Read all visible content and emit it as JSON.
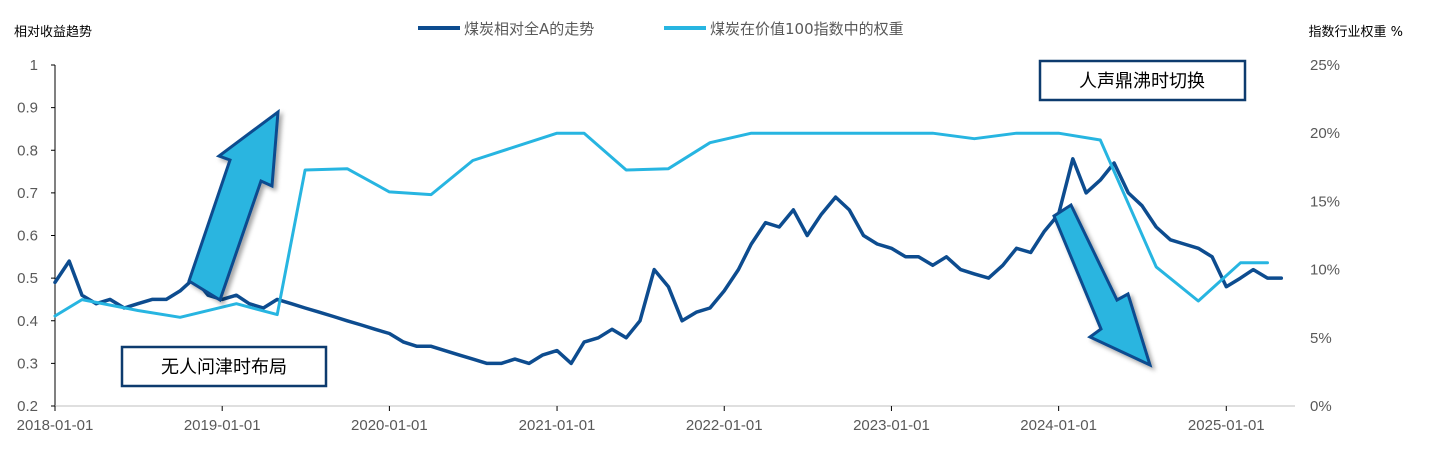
{
  "chart_data": {
    "type": "line",
    "title": "",
    "ylabel_left": "相对收益趋势",
    "ylabel_right": "指数行业权重 %",
    "x_ticks": [
      "2018-01-01",
      "2019-01-01",
      "2020-01-01",
      "2021-01-01",
      "2022-01-01",
      "2023-01-01",
      "2024-01-01",
      "2025-01-01"
    ],
    "x_range": [
      "2018-01-01",
      "2025-05-31"
    ],
    "y_left_ticks": [
      "0.2",
      "0.3",
      "0.4",
      "0.5",
      "0.6",
      "0.7",
      "0.8",
      "0.9",
      "1"
    ],
    "y_left_range": [
      0.2,
      1.0
    ],
    "y_right_ticks": [
      "0%",
      "5%",
      "10%",
      "15%",
      "20%",
      "25%"
    ],
    "y_right_range": [
      0,
      25
    ],
    "grid": false,
    "legend_position": "top",
    "series": [
      {
        "name": "煤炭相对全A的走势",
        "axis": "left",
        "color": "#0d4c8f",
        "x": [
          "2018-01-01",
          "2018-02-01",
          "2018-03-01",
          "2018-04-01",
          "2018-05-01",
          "2018-06-01",
          "2018-07-01",
          "2018-08-01",
          "2018-09-01",
          "2018-10-01",
          "2018-11-01",
          "2018-12-01",
          "2019-01-01",
          "2019-02-01",
          "2019-03-01",
          "2019-04-01",
          "2019-05-01",
          "2019-06-01",
          "2019-07-01",
          "2019-08-01",
          "2019-09-01",
          "2019-10-01",
          "2019-11-01",
          "2019-12-01",
          "2020-01-01",
          "2020-02-01",
          "2020-03-01",
          "2020-04-01",
          "2020-05-01",
          "2020-06-01",
          "2020-07-01",
          "2020-08-01",
          "2020-09-01",
          "2020-10-01",
          "2020-11-01",
          "2020-12-01",
          "2021-01-01",
          "2021-02-01",
          "2021-03-01",
          "2021-04-01",
          "2021-05-01",
          "2021-06-01",
          "2021-07-01",
          "2021-08-01",
          "2021-09-01",
          "2021-10-01",
          "2021-11-01",
          "2021-12-01",
          "2022-01-01",
          "2022-02-01",
          "2022-03-01",
          "2022-04-01",
          "2022-05-01",
          "2022-06-01",
          "2022-07-01",
          "2022-08-01",
          "2022-09-01",
          "2022-10-01",
          "2022-11-01",
          "2022-12-01",
          "2023-01-01",
          "2023-02-01",
          "2023-03-01",
          "2023-04-01",
          "2023-05-01",
          "2023-06-01",
          "2023-07-01",
          "2023-08-01",
          "2023-09-01",
          "2023-10-01",
          "2023-11-01",
          "2023-12-01",
          "2024-01-01",
          "2024-02-01",
          "2024-03-01",
          "2024-04-01",
          "2024-05-01",
          "2024-06-01",
          "2024-07-01",
          "2024-08-01",
          "2024-09-01",
          "2024-10-01",
          "2024-11-01",
          "2024-12-01",
          "2025-01-01",
          "2025-02-01",
          "2025-03-01",
          "2025-04-01",
          "2025-05-01"
        ],
        "values": [
          0.49,
          0.54,
          0.46,
          0.44,
          0.45,
          0.43,
          0.44,
          0.45,
          0.45,
          0.47,
          0.5,
          0.46,
          0.45,
          0.46,
          0.44,
          0.43,
          0.45,
          0.44,
          0.43,
          0.42,
          0.41,
          0.4,
          0.39,
          0.38,
          0.37,
          0.35,
          0.34,
          0.34,
          0.33,
          0.32,
          0.31,
          0.3,
          0.3,
          0.31,
          0.3,
          0.32,
          0.33,
          0.3,
          0.35,
          0.36,
          0.38,
          0.36,
          0.4,
          0.52,
          0.48,
          0.4,
          0.42,
          0.43,
          0.47,
          0.52,
          0.58,
          0.63,
          0.62,
          0.66,
          0.6,
          0.65,
          0.69,
          0.66,
          0.6,
          0.58,
          0.57,
          0.55,
          0.55,
          0.53,
          0.55,
          0.52,
          0.51,
          0.5,
          0.53,
          0.57,
          0.56,
          0.61,
          0.65,
          0.78,
          0.7,
          0.73,
          0.77,
          0.7,
          0.67,
          0.62,
          0.59,
          0.58,
          0.57,
          0.55,
          0.48,
          0.5,
          0.52,
          0.5,
          0.5
        ]
      },
      {
        "name": "煤炭在价值100指数中的权重",
        "axis": "right",
        "color": "#27b5e1",
        "x": [
          "2018-01-01",
          "2018-03-01",
          "2018-07-01",
          "2018-10-01",
          "2019-02-01",
          "2019-05-01",
          "2019-07-01",
          "2019-10-01",
          "2020-01-01",
          "2020-04-01",
          "2020-07-01",
          "2021-01-01",
          "2021-03-01",
          "2021-06-01",
          "2021-09-01",
          "2021-12-01",
          "2022-03-01",
          "2022-07-01",
          "2022-10-01",
          "2023-01-01",
          "2023-04-01",
          "2023-07-01",
          "2023-10-01",
          "2024-01-01",
          "2024-04-01",
          "2024-08-01",
          "2024-11-01",
          "2025-02-01",
          "2025-04-01"
        ],
        "values": [
          6.6,
          7.8,
          7.0,
          6.5,
          7.5,
          6.7,
          17.3,
          17.4,
          15.7,
          15.5,
          18.0,
          20.0,
          20.0,
          17.3,
          17.4,
          19.3,
          20.0,
          20.0,
          20.0,
          20.0,
          20.0,
          19.6,
          20.0,
          20.0,
          19.5,
          10.2,
          7.7,
          10.5,
          10.5
        ]
      }
    ],
    "annotations": [
      {
        "text": "无人问津时布局",
        "arrow": "up"
      },
      {
        "text": "人声鼎沸时切换",
        "arrow": "down"
      }
    ]
  }
}
